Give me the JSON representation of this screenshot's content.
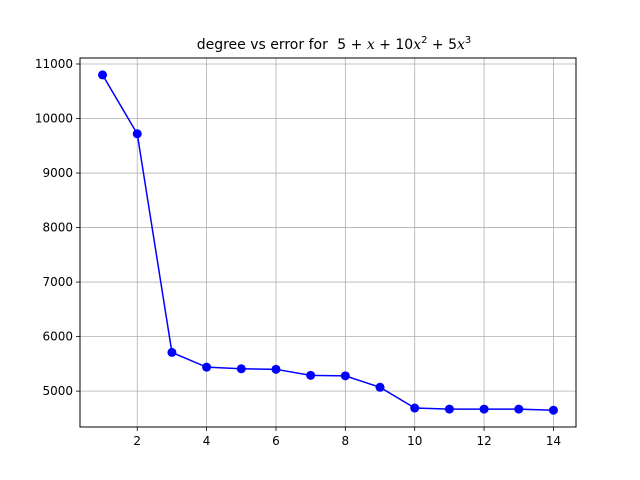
{
  "chart_data": {
    "type": "line",
    "title": "degree vs error for",
    "title_math": {
      "prefix": "5 + ",
      "x": "x",
      "mid1": " + 10",
      "x2": "x",
      "exp2": "2",
      "mid2": " + 5",
      "x3": "x",
      "exp3": "3"
    },
    "xlabel": "",
    "ylabel": "",
    "x": [
      1,
      2,
      3,
      4,
      5,
      6,
      7,
      8,
      9,
      10,
      11,
      12,
      13,
      14
    ],
    "series": [
      {
        "values": [
          10800,
          9720,
          5710,
          5440,
          5410,
          5400,
          5290,
          5280,
          5070,
          4690,
          4670,
          4670,
          4670,
          4650
        ],
        "color": "#0000ff",
        "marker": "circle"
      }
    ],
    "xlim": [
      0.35,
      14.65
    ],
    "ylim": [
      4342,
      11110
    ],
    "xticks": [
      2,
      4,
      6,
      8,
      10,
      12,
      14
    ],
    "yticks": [
      5000,
      6000,
      7000,
      8000,
      9000,
      10000,
      11000
    ],
    "xtick_labels": [
      "2",
      "4",
      "6",
      "8",
      "10",
      "12",
      "14"
    ],
    "ytick_labels": [
      "5000",
      "6000",
      "7000",
      "8000",
      "9000",
      "10000",
      "11000"
    ],
    "grid": true,
    "grid_color": "#b0b0b0",
    "legend": null
  }
}
